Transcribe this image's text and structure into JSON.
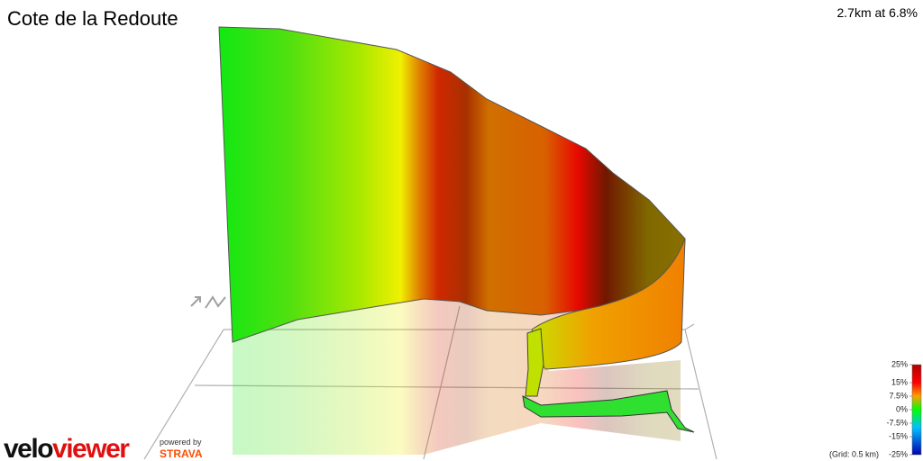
{
  "header": {
    "title": "Cote de la Redoute",
    "summary": "2.7km at 6.8%"
  },
  "legend": {
    "range": [
      -25,
      25
    ],
    "ticks": [
      {
        "value": 25,
        "label": "25%"
      },
      {
        "value": 15,
        "label": "15%"
      },
      {
        "value": 7.5,
        "label": "7.5%"
      },
      {
        "value": 0,
        "label": "0%"
      },
      {
        "value": -7.5,
        "label": "-7.5%"
      },
      {
        "value": -15,
        "label": "-15%"
      },
      {
        "value": -25,
        "label": "-25%"
      }
    ],
    "grid_note": "(Grid: 0.5 km)"
  },
  "branding": {
    "logo_velo": "velo",
    "logo_viewer": "viewer",
    "powered_by": "powered by",
    "strava": "STRAVA"
  }
}
